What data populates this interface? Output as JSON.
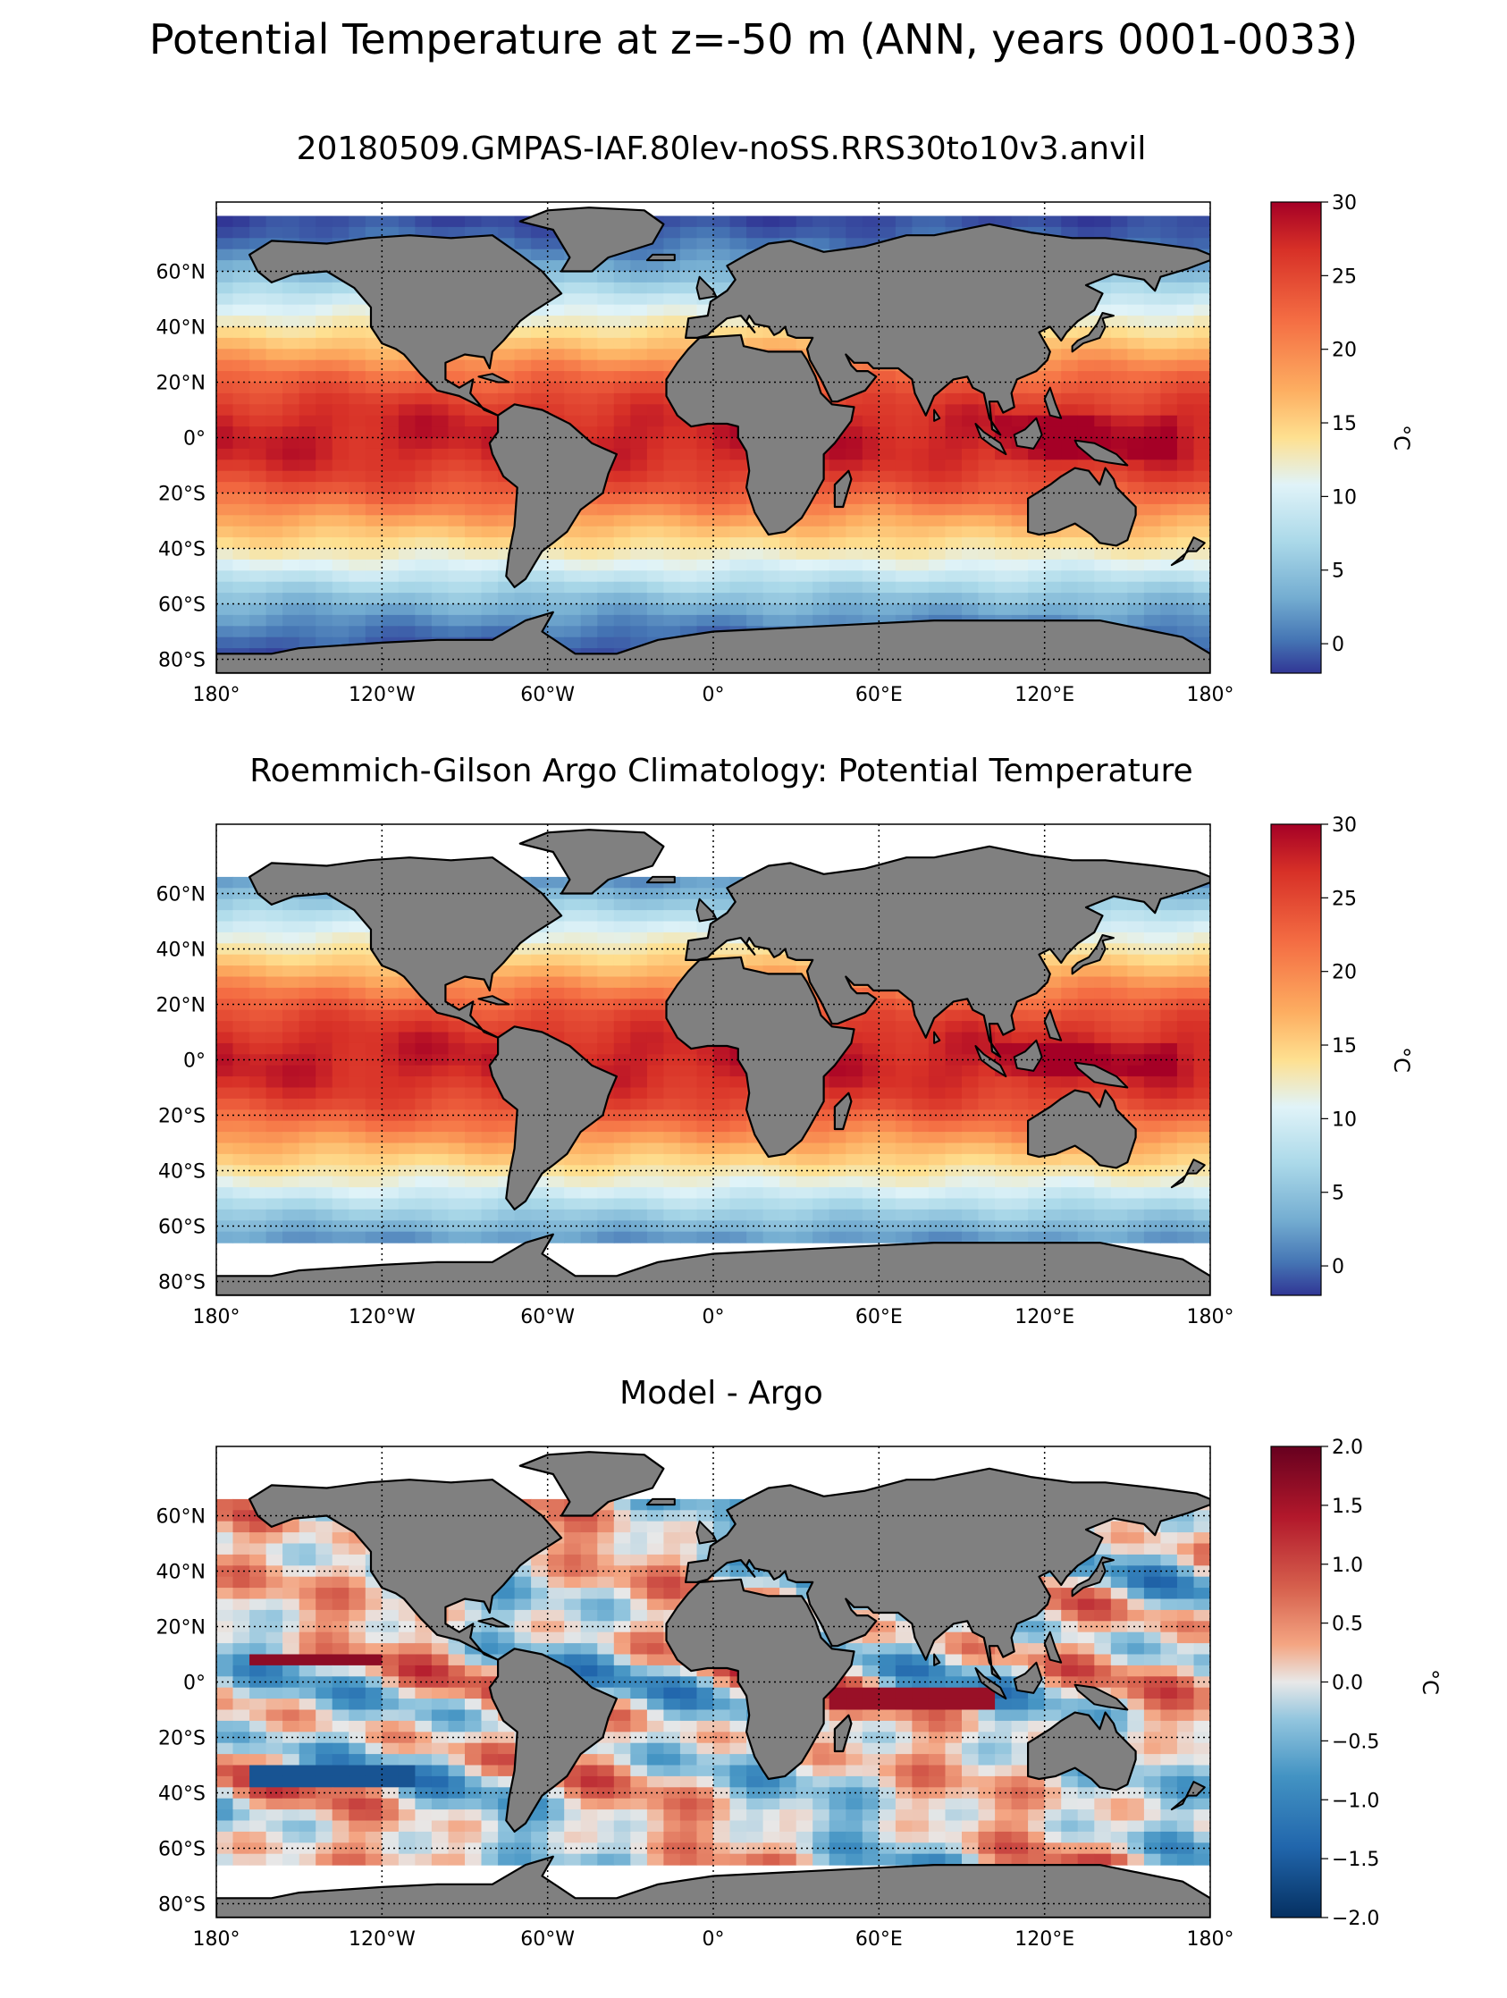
{
  "suptitle": "Potential Temperature at z=-50 m (ANN, years 0001-0033)",
  "panels": [
    {
      "title": "20180509.GMPAS-IAF.80lev-noSS.RRS30to10v3.anvil",
      "kind": "model"
    },
    {
      "title": "Roemmich-Gilson Argo Climatology: Potential Temperature",
      "kind": "obs"
    },
    {
      "title": "Model - Argo",
      "kind": "diff"
    }
  ],
  "axes": {
    "lon_labels": [
      "180°",
      "120°W",
      "60°W",
      "0°",
      "60°E",
      "120°E",
      "180°"
    ],
    "lat_labels": [
      "60°N",
      "40°N",
      "20°N",
      "0°",
      "20°S",
      "40°S",
      "60°S",
      "80°S"
    ]
  },
  "colorbars": [
    {
      "ticks": [
        "30",
        "25",
        "20",
        "15",
        "10",
        "5",
        "0"
      ],
      "label": "°C"
    },
    {
      "ticks": [
        "30",
        "25",
        "20",
        "15",
        "10",
        "5",
        "0"
      ],
      "label": "°C"
    },
    {
      "ticks": [
        "2.0",
        "1.5",
        "1.0",
        "0.5",
        "0.0",
        "−0.5",
        "−1.0",
        "−1.5",
        "−2.0"
      ],
      "label": "°C"
    }
  ],
  "chart_data": [
    {
      "type": "heatmap",
      "title": "20180509.GMPAS-IAF.80lev-noSS.RRS30to10v3.anvil",
      "xlim": [
        -180,
        180
      ],
      "ylim": [
        -85,
        85
      ],
      "colorbar_range": [
        -2,
        30
      ],
      "colorbar_ticks": [
        0,
        5,
        10,
        15,
        20,
        25,
        30
      ],
      "colormap": "RdYlBu_r",
      "units": "°C",
      "grid": true
    },
    {
      "type": "heatmap",
      "title": "Roemmich-Gilson Argo Climatology: Potential Temperature",
      "xlim": [
        -180,
        180
      ],
      "ylim": [
        -85,
        85
      ],
      "colorbar_range": [
        -2,
        30
      ],
      "colorbar_ticks": [
        0,
        5,
        10,
        15,
        20,
        25,
        30
      ],
      "colormap": "RdYlBu_r",
      "units": "°C",
      "grid": true
    },
    {
      "type": "heatmap",
      "title": "Model - Argo",
      "xlim": [
        -180,
        180
      ],
      "ylim": [
        -85,
        85
      ],
      "colorbar_range": [
        -2,
        2
      ],
      "colorbar_ticks": [
        -2.0,
        -1.5,
        -1.0,
        -0.5,
        0.0,
        0.5,
        1.0,
        1.5,
        2.0
      ],
      "colormap": "RdBu_r",
      "units": "°C",
      "grid": true
    }
  ],
  "colors": {
    "land": "#808080",
    "missing": "#ffffff",
    "coast": "#000000"
  }
}
